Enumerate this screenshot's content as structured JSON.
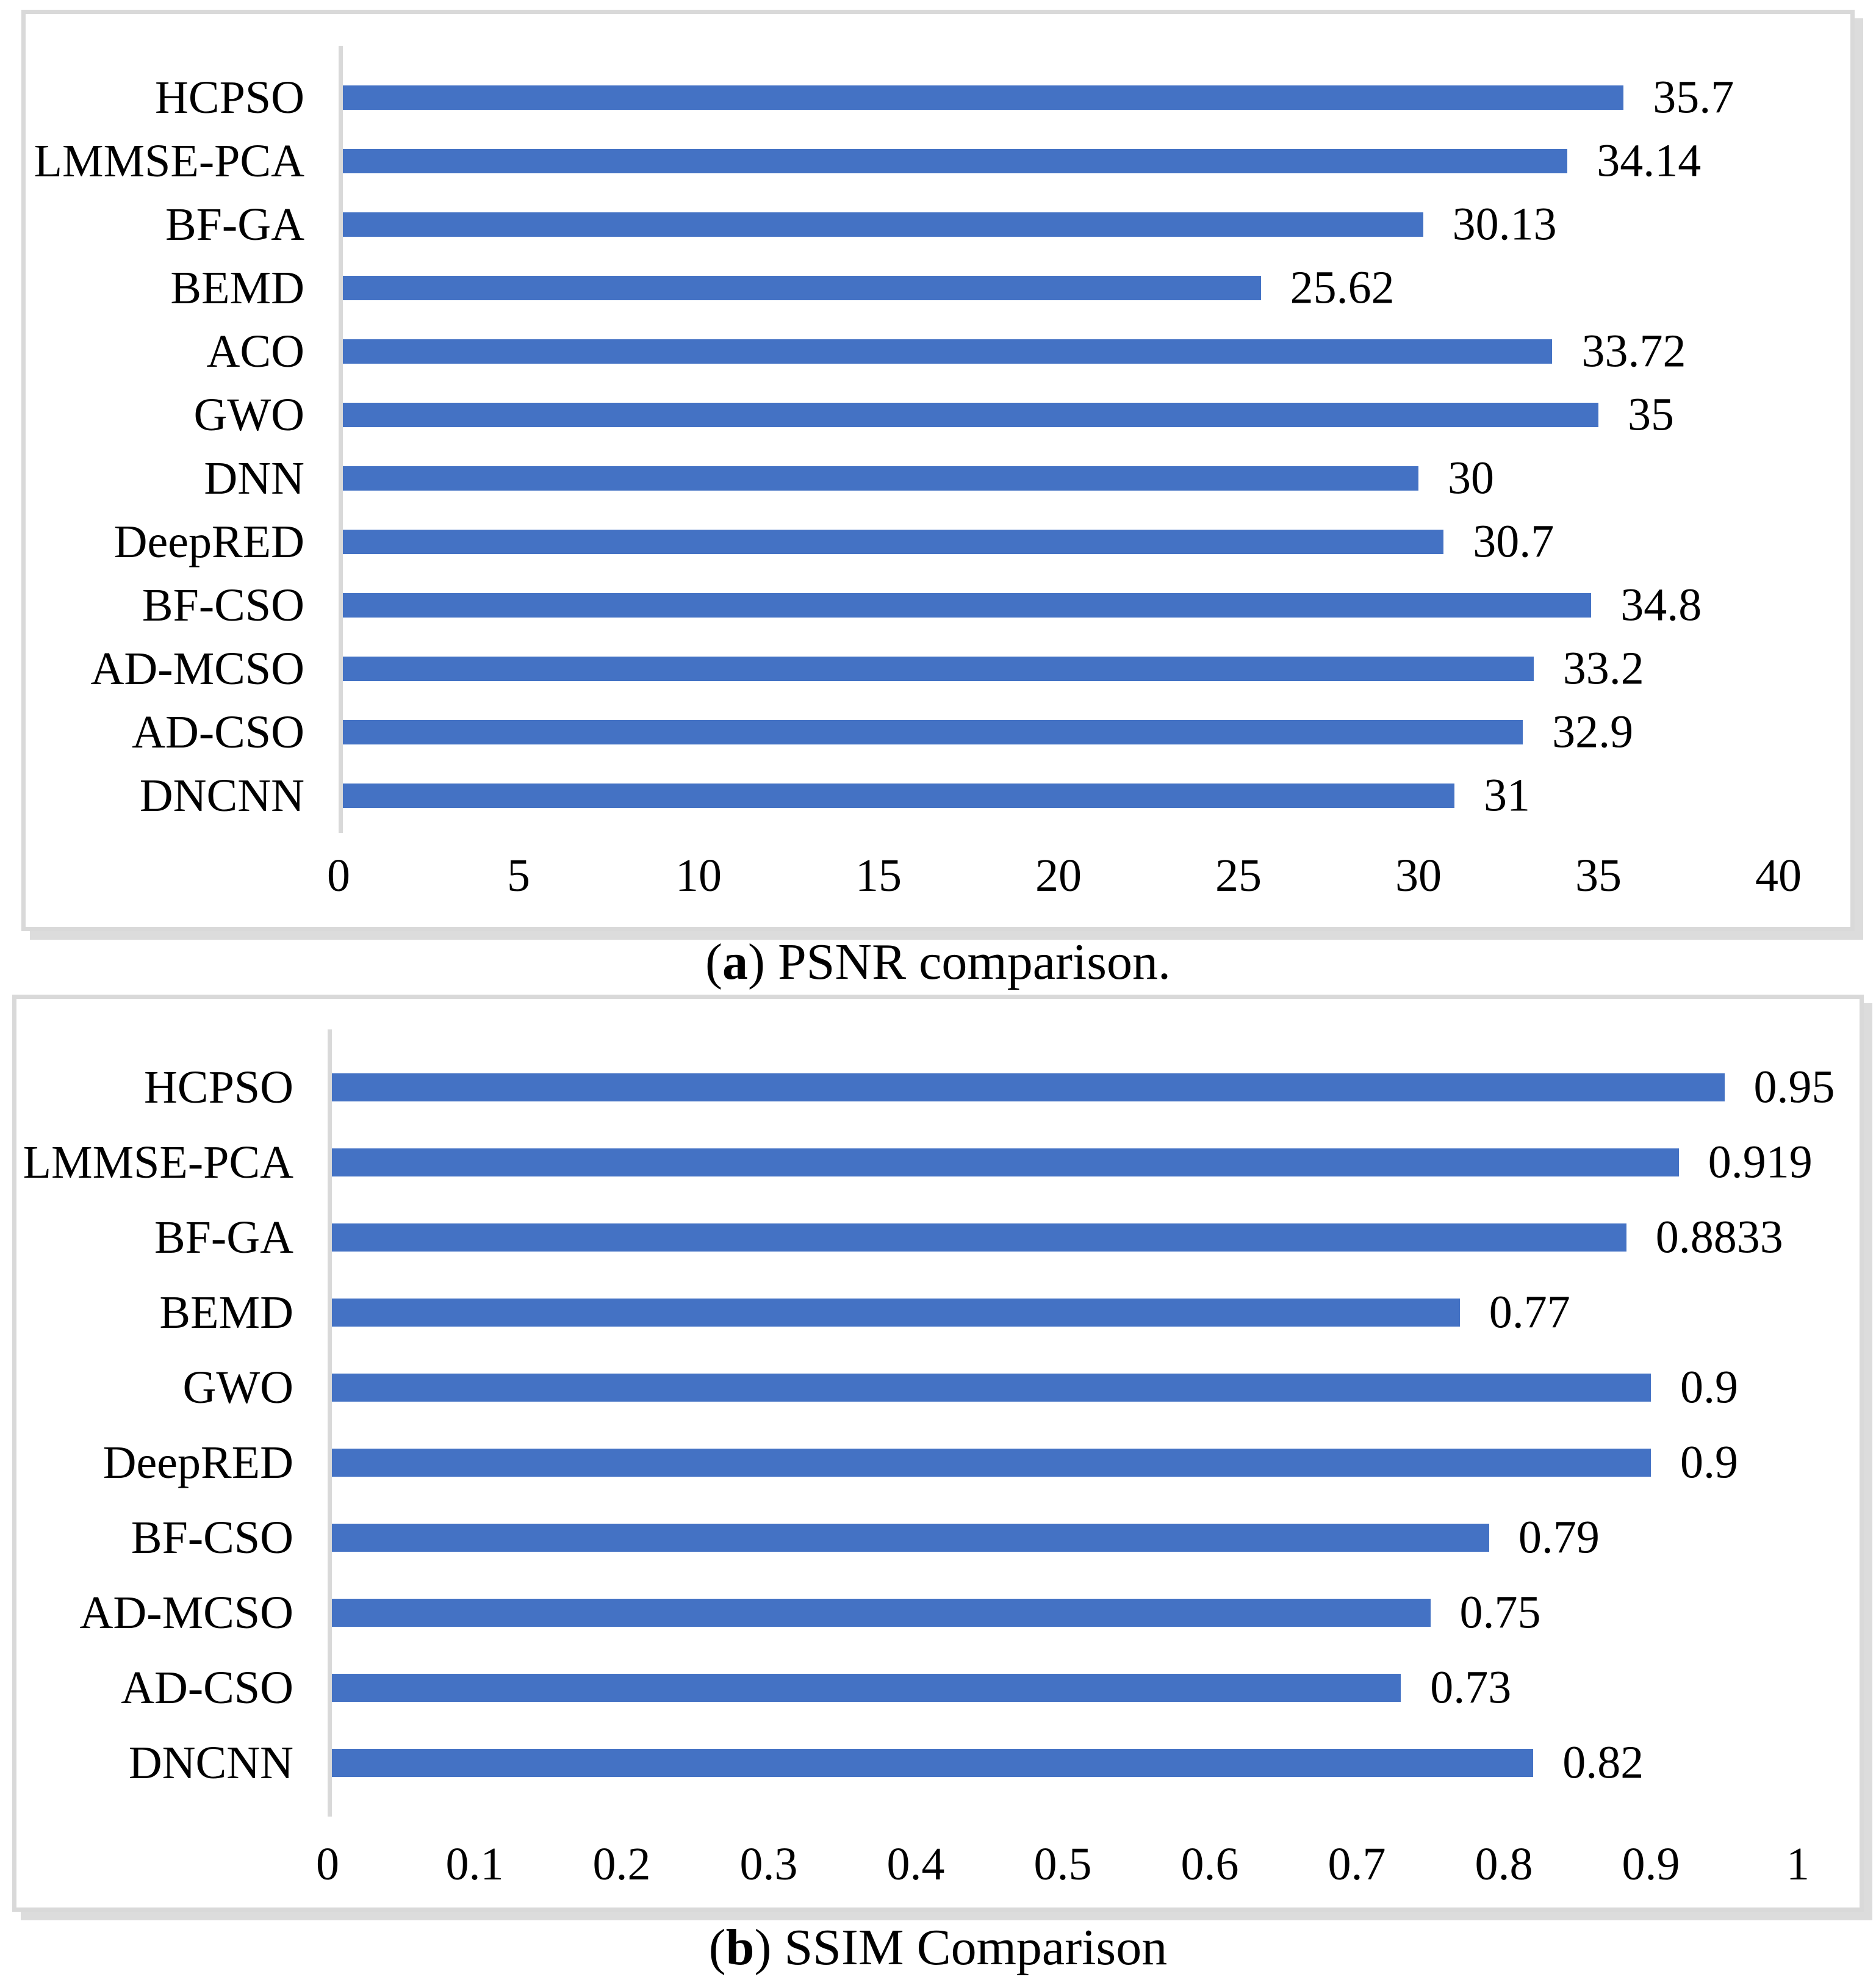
{
  "figure": {
    "captions": [
      {
        "open": "(",
        "letter": "a",
        "close": ")",
        "text": " PSNR comparison."
      },
      {
        "open": "(",
        "letter": "b",
        "close": ")",
        "text": " SSIM Comparison"
      }
    ]
  },
  "chart_data": [
    {
      "type": "bar",
      "orientation": "horizontal",
      "title": "",
      "xlabel": "",
      "ylabel": "",
      "categories": [
        "HCPSO",
        "LMMSE-PCA",
        "BF-GA",
        "BEMD",
        "ACO",
        "GWO",
        "DNN",
        "DeepRED",
        "BF-CSO",
        "AD-MCSO",
        "AD-CSO",
        "DNCNN"
      ],
      "values": [
        35.7,
        34.14,
        30.13,
        25.62,
        33.72,
        35,
        30,
        30.7,
        34.8,
        33.2,
        32.9,
        31
      ],
      "value_labels": [
        "35.7",
        "34.14",
        "30.13",
        "25.62",
        "33.72",
        "35",
        "30",
        "30.7",
        "34.8",
        "33.2",
        "32.9",
        "31"
      ],
      "xlim": [
        0,
        40
      ],
      "tick_labels": [
        "0",
        "5",
        "10",
        "15",
        "20",
        "25",
        "30",
        "35",
        "40"
      ],
      "grid": false,
      "legend": false,
      "bar_color": "#4472C4",
      "axis_line_color": "#D9D9D9",
      "caption": {
        "open": "(",
        "letter": "a",
        "close": ")",
        "text": " PSNR comparison."
      }
    },
    {
      "type": "bar",
      "orientation": "horizontal",
      "title": "",
      "xlabel": "",
      "ylabel": "",
      "categories": [
        "HCPSO",
        "LMMSE-PCA",
        "BF-GA",
        "BEMD",
        "GWO",
        "DeepRED",
        "BF-CSO",
        "AD-MCSO",
        "AD-CSO",
        "DNCNN"
      ],
      "values": [
        0.95,
        0.919,
        0.8833,
        0.77,
        0.9,
        0.9,
        0.79,
        0.75,
        0.73,
        0.82
      ],
      "value_labels": [
        "0.95",
        "0.919",
        "0.8833",
        "0.77",
        "0.9",
        "0.9",
        "0.79",
        "0.75",
        "0.73",
        "0.82"
      ],
      "xlim": [
        0,
        1
      ],
      "tick_labels": [
        "0",
        "0.1",
        "0.2",
        "0.3",
        "0.4",
        "0.5",
        "0.6",
        "0.7",
        "0.8",
        "0.9",
        "1"
      ],
      "grid": false,
      "legend": false,
      "bar_color": "#4472C4",
      "axis_line_color": "#D9D9D9",
      "caption": {
        "open": "(",
        "letter": "b",
        "close": ")",
        "text": " SSIM Comparison"
      }
    }
  ]
}
